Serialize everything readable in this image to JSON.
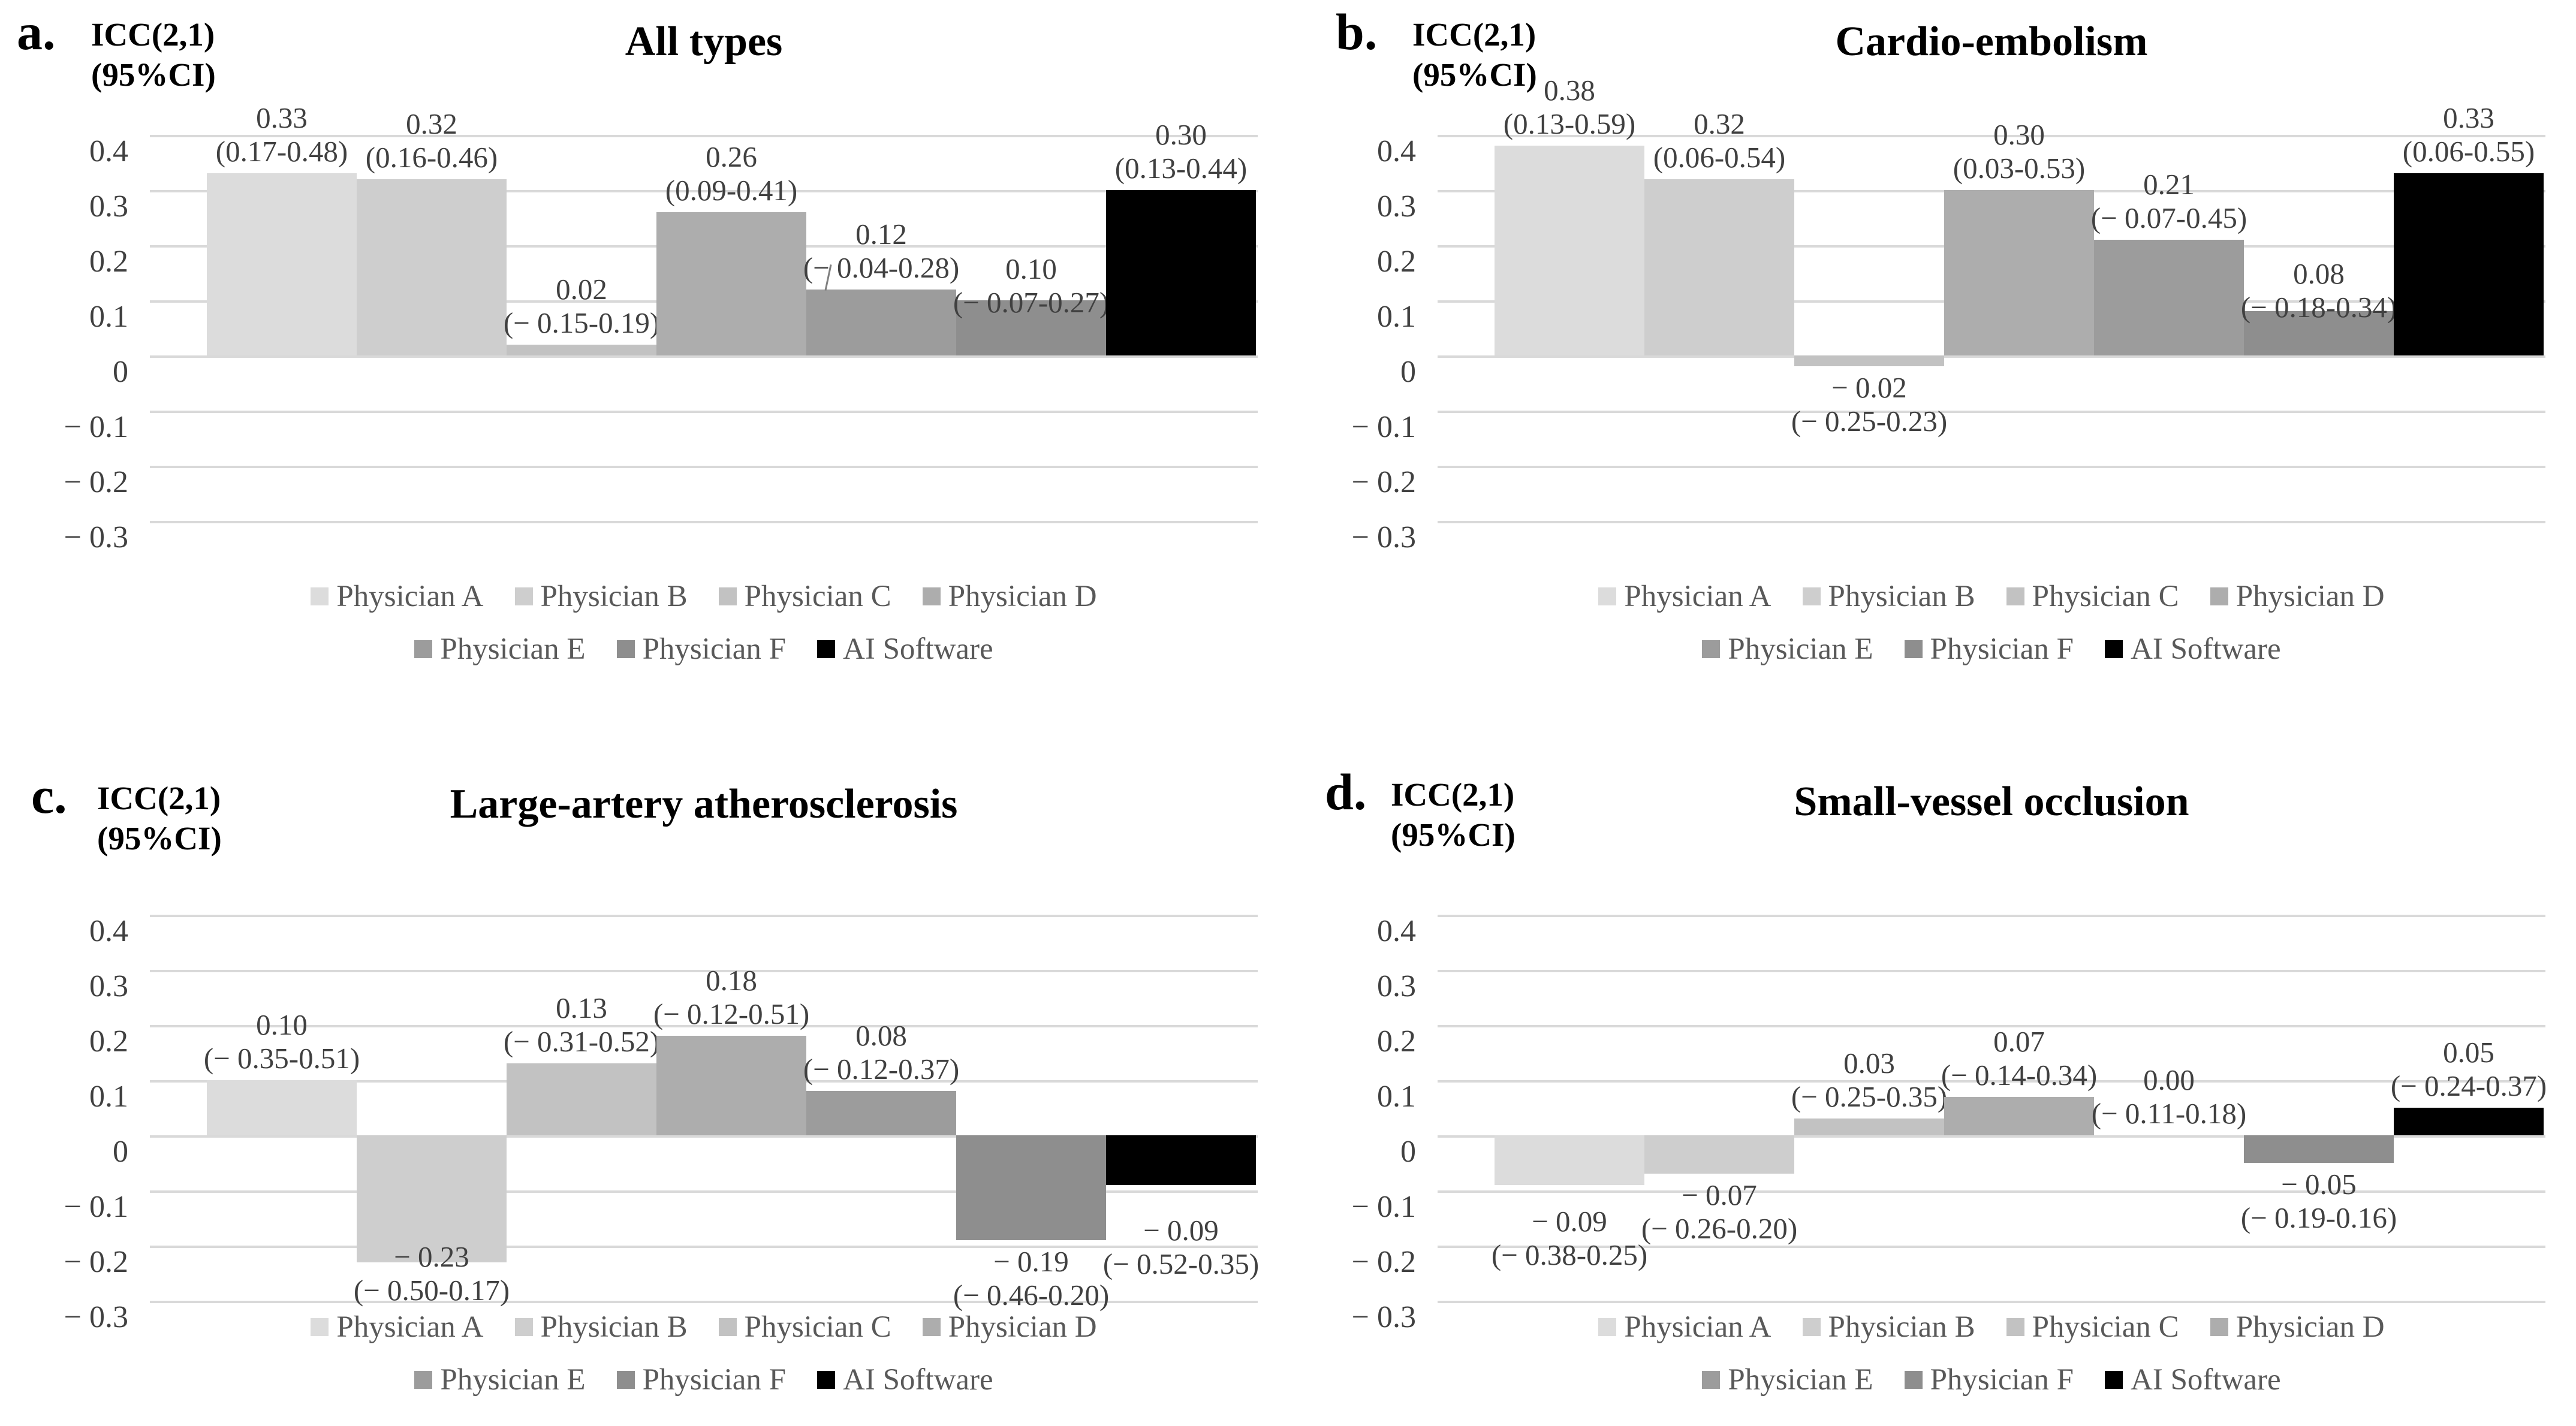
{
  "figure_name": "ICC agreement bar charts",
  "series_colors": {
    "Physician A": "#dcdcdc",
    "Physician B": "#cecece",
    "Physician C": "#c2c2c2",
    "Physician D": "#adadad",
    "Physician E": "#9c9c9c",
    "Physician F": "#8e8e8e",
    "AI Software": "#000000"
  },
  "grid_color": "#d9d9d9",
  "chart_data": [
    {
      "type": "bar",
      "panel_letter": "a.",
      "axis_label_line1": "ICC(2,1)",
      "axis_label_line2": "(95%CI)",
      "title": "All types",
      "categories": [
        "Physician A",
        "Physician B",
        "Physician C",
        "Physician D",
        "Physician E",
        "Physician F",
        "AI Software"
      ],
      "values": [
        0.33,
        0.32,
        0.02,
        0.26,
        0.12,
        0.1,
        0.3
      ],
      "value_labels": [
        "0.33",
        "0.32",
        "0.02",
        "0.26",
        "0.12",
        "0.10",
        "0.30"
      ],
      "ci_labels": [
        "(0.17-0.48)",
        "(0.16-0.46)",
        "(− 0.15-0.19)",
        "(0.09-0.41)",
        "(− 0.04-0.28)",
        "(− 0.07-0.27)",
        "(0.13-0.44)"
      ],
      "ylim": [
        -0.3,
        0.4
      ],
      "yticks": [
        "0.4",
        "0.3",
        "0.2",
        "0.1",
        "0",
        "− 0.1",
        "− 0.2",
        "− 0.3"
      ],
      "grid": true,
      "legend_position": "bottom",
      "legend_rows": [
        [
          "Physician A",
          "Physician B",
          "Physician C",
          "Physician D"
        ],
        [
          "Physician E",
          "Physician F",
          "AI Software"
        ]
      ],
      "label_dy": [
        0,
        0,
        0,
        0,
        0,
        40,
        0
      ],
      "leader": [
        false,
        false,
        false,
        false,
        true,
        false,
        false
      ]
    },
    {
      "type": "bar",
      "panel_letter": "b.",
      "axis_label_line1": "ICC(2,1)",
      "axis_label_line2": "(95%CI)",
      "title": "Cardio-embolism",
      "categories": [
        "Physician A",
        "Physician B",
        "Physician C",
        "Physician D",
        "Physician E",
        "Physician F",
        "AI Software"
      ],
      "values": [
        0.38,
        0.32,
        -0.02,
        0.3,
        0.21,
        0.08,
        0.33
      ],
      "value_labels": [
        "0.38",
        "0.32",
        "− 0.02",
        "0.30",
        "0.21",
        "0.08",
        "0.33"
      ],
      "ci_labels": [
        "(0.13-0.59)",
        "(0.06-0.54)",
        "(− 0.25-0.23)",
        "(0.03-0.53)",
        "(− 0.07-0.45)",
        "(− 0.18-0.34)",
        "(0.06-0.55)"
      ],
      "ylim": [
        -0.3,
        0.4
      ],
      "yticks": [
        "0.4",
        "0.3",
        "0.2",
        "0.1",
        "0",
        "− 0.1",
        "− 0.2",
        "− 0.3"
      ],
      "grid": true,
      "legend_position": "bottom",
      "legend_rows": [
        [
          "Physician A",
          "Physician B",
          "Physician C",
          "Physician D"
        ],
        [
          "Physician E",
          "Physician F",
          "AI Software"
        ]
      ],
      "label_dy": [
        0,
        0,
        0,
        0,
        0,
        30,
        0
      ],
      "leader": [
        false,
        false,
        false,
        false,
        false,
        false,
        false
      ]
    },
    {
      "type": "bar",
      "panel_letter": "c.",
      "axis_label_line1": "ICC(2,1)",
      "axis_label_line2": "(95%CI)",
      "title": "Large-artery atherosclerosis",
      "categories": [
        "Physician A",
        "Physician B",
        "Physician C",
        "Physician D",
        "Physician E",
        "Physician F",
        "AI Software"
      ],
      "values": [
        0.1,
        -0.23,
        0.13,
        0.18,
        0.08,
        -0.19,
        -0.09
      ],
      "value_labels": [
        "0.10",
        "− 0.23",
        "0.13",
        "0.18",
        "0.08",
        "− 0.19",
        "− 0.09"
      ],
      "ci_labels": [
        "(− 0.35-0.51)",
        "(− 0.50-0.17)",
        "(− 0.31-0.52)",
        "(− 0.12-0.51)",
        "(− 0.12-0.37)",
        "(− 0.46-0.20)",
        "(− 0.52-0.35)"
      ],
      "ylim": [
        -0.3,
        0.4
      ],
      "yticks": [
        "0.4",
        "0.3",
        "0.2",
        "0.1",
        "0",
        "− 0.1",
        "− 0.2",
        "− 0.3"
      ],
      "grid": true,
      "legend_position": "bottom",
      "legend_rows": [
        [
          "Physician A",
          "Physician B",
          "Physician C",
          "Physician D"
        ],
        [
          "Physician E",
          "Physician F",
          "AI Software"
        ]
      ],
      "label_dy": [
        0,
        -45,
        0,
        0,
        0,
        0,
        40
      ],
      "leader": [
        false,
        false,
        false,
        false,
        false,
        false,
        false
      ]
    },
    {
      "type": "bar",
      "panel_letter": "d.",
      "axis_label_line1": "ICC(2,1)",
      "axis_label_line2": "(95%CI)",
      "title": "Small-vessel occlusion",
      "categories": [
        "Physician A",
        "Physician B",
        "Physician C",
        "Physician D",
        "Physician E",
        "Physician F",
        "AI Software"
      ],
      "values": [
        -0.09,
        -0.07,
        0.03,
        0.07,
        0.0,
        -0.05,
        0.05
      ],
      "value_labels": [
        "− 0.09",
        "− 0.07",
        "0.03",
        "0.07",
        "0.00",
        "− 0.05",
        "0.05"
      ],
      "ci_labels": [
        "(− 0.38-0.25)",
        "(− 0.26-0.20)",
        "(− 0.25-0.35)",
        "(− 0.14-0.34)",
        "(− 0.11-0.18)",
        "(− 0.19-0.16)",
        "(− 0.24-0.37)"
      ],
      "ylim": [
        -0.3,
        0.4
      ],
      "yticks": [
        "0.4",
        "0.3",
        "0.2",
        "0.1",
        "0",
        "− 0.1",
        "− 0.2",
        "− 0.3"
      ],
      "grid": true,
      "legend_position": "bottom",
      "legend_rows": [
        [
          "Physician A",
          "Physician B",
          "Physician C",
          "Physician D"
        ],
        [
          "Physician E",
          "Physician F",
          "AI Software"
        ]
      ],
      "label_dy": [
        25,
        0,
        0,
        0,
        0,
        0,
        0
      ],
      "leader": [
        false,
        false,
        false,
        false,
        false,
        false,
        false
      ]
    }
  ]
}
